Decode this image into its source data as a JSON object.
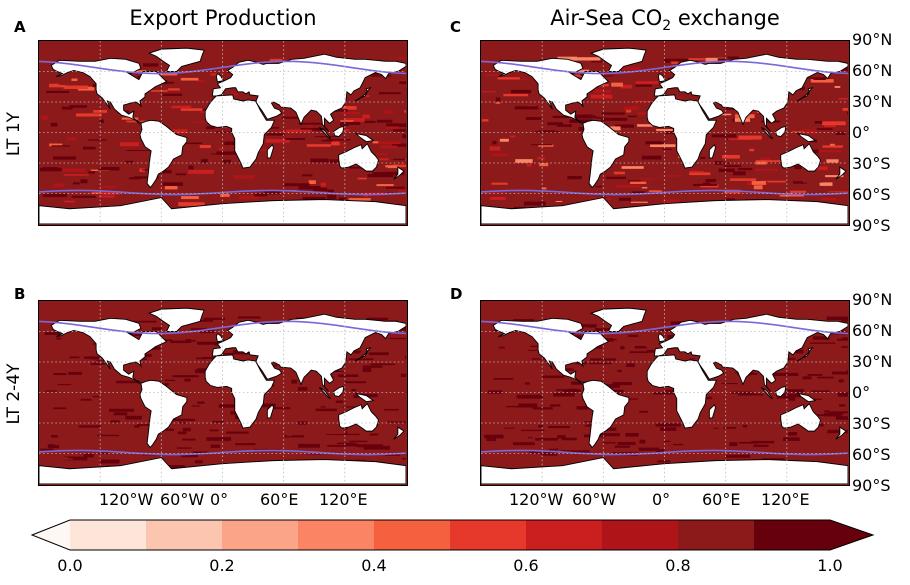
{
  "columns": [
    {
      "title_prefix": "Export Production",
      "title_sub": "",
      "title_suffix": ""
    },
    {
      "title_prefix": "Air-Sea CO",
      "title_sub": "2",
      "title_suffix": " exchange"
    }
  ],
  "rows": [
    {
      "label": "LT 1Y"
    },
    {
      "label": "LT 2-4Y"
    }
  ],
  "panels": [
    {
      "letter": "A",
      "row": 0,
      "col": 0,
      "background_level": 0.85
    },
    {
      "letter": "C",
      "row": 0,
      "col": 1,
      "background_level": 0.8
    },
    {
      "letter": "B",
      "row": 1,
      "col": 0,
      "background_level": 0.95
    },
    {
      "letter": "D",
      "row": 1,
      "col": 1,
      "background_level": 0.95
    }
  ],
  "lat_ticks": [
    "90°N",
    "60°N",
    "30°N",
    "0°",
    "30°S",
    "60°S",
    "90°S"
  ],
  "lon_ticks": [
    "120°W",
    "60°W",
    "0°",
    "60°E",
    "120°E"
  ],
  "colorbar": {
    "ticks": [
      "0.0",
      "0.2",
      "0.4",
      "0.6",
      "0.8",
      "1.0"
    ],
    "min": 0.0,
    "max": 1.0,
    "extend": "both",
    "colors": [
      "#fee5d9",
      "#fcc5b0",
      "#fca488",
      "#fb8464",
      "#f5603f",
      "#e6392b",
      "#cb1e1f",
      "#af1419",
      "#8d1a1a",
      "#67000d"
    ]
  },
  "colors": {
    "contour_line": "#7b68d8",
    "land": "#ffffff",
    "gridline": "#bbbbbb"
  }
}
